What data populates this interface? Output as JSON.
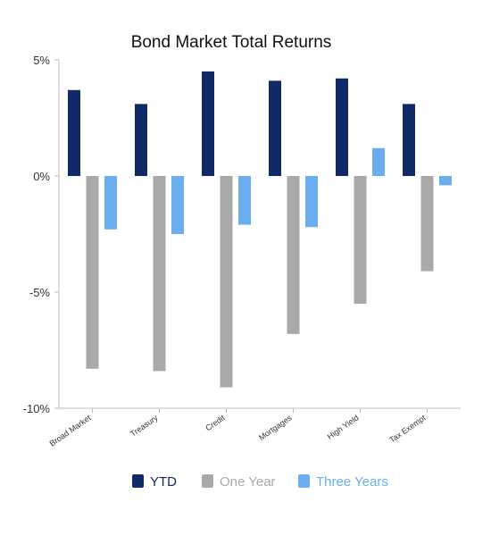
{
  "chart_data": {
    "type": "bar",
    "title": "Bond Market Total Returns",
    "xlabel": "",
    "ylabel": "",
    "categories": [
      "Broad Market",
      "Treasury",
      "Credit",
      "Mortgages",
      "High Yield",
      "Tax Exempt"
    ],
    "series": [
      {
        "name": "YTD",
        "values": [
          3.7,
          3.1,
          4.5,
          4.1,
          4.2,
          3.1
        ],
        "color": "#0f2a66"
      },
      {
        "name": "One Year",
        "values": [
          -8.3,
          -8.4,
          -9.1,
          -6.8,
          -5.5,
          -4.1
        ],
        "color": "#a9a9a9"
      },
      {
        "name": "Three Years",
        "values": [
          -2.3,
          -2.5,
          -2.1,
          -2.2,
          1.2,
          -0.4
        ],
        "color": "#6aaef0"
      }
    ],
    "ylim": [
      -10,
      5
    ],
    "yticks": [
      5,
      0,
      -5,
      -10
    ],
    "ytick_labels": [
      "5%",
      "0%",
      "-5%",
      "-10%"
    ],
    "grid": false,
    "legend_position": "bottom-center"
  }
}
